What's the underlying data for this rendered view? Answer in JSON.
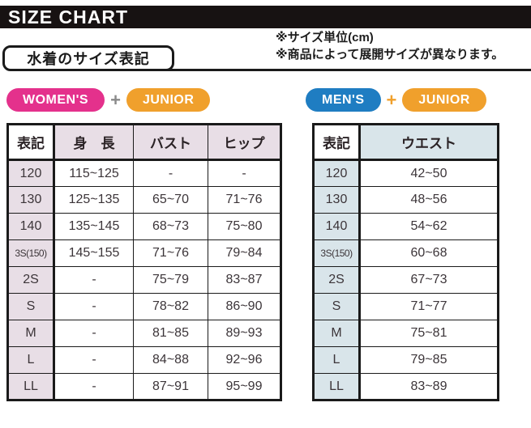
{
  "title_bar": {
    "title": "SIZE CHART"
  },
  "notes": {
    "line1": "※サイズ単位(cm)",
    "line2": "※商品によって展開サイズが異なります。"
  },
  "section_label": "水着のサイズ表記",
  "group_labels": {
    "womens": "WOMEN'S",
    "mens": "MEN'S",
    "junior": "JUNIOR",
    "plus": "+"
  },
  "colors": {
    "bar": "#171212",
    "womens": "#e4318c",
    "junior": "#f0a02c",
    "mens": "#1f7dc2",
    "plus_left": "#8a8a8a",
    "plus_right": "#f0a02c",
    "left_accent": "#e8dee6",
    "right_accent": "#d9e5ea"
  },
  "women_table": {
    "headers": [
      "表記",
      "身　長",
      "バスト",
      "ヒップ"
    ],
    "rows": [
      [
        "120",
        "115~125",
        "-",
        "-"
      ],
      [
        "130",
        "125~135",
        "65~70",
        "71~76"
      ],
      [
        "140",
        "135~145",
        "68~73",
        "75~80"
      ],
      [
        "3S(150)",
        "145~155",
        "71~76",
        "79~84"
      ],
      [
        "2S",
        "-",
        "75~79",
        "83~87"
      ],
      [
        "S",
        "-",
        "78~82",
        "86~90"
      ],
      [
        "M",
        "-",
        "81~85",
        "89~93"
      ],
      [
        "L",
        "-",
        "84~88",
        "92~96"
      ],
      [
        "LL",
        "-",
        "87~91",
        "95~99"
      ]
    ]
  },
  "men_table": {
    "headers": [
      "表記",
      "ウエスト"
    ],
    "rows": [
      [
        "120",
        "42~50"
      ],
      [
        "130",
        "48~56"
      ],
      [
        "140",
        "54~62"
      ],
      [
        "3S(150)",
        "60~68"
      ],
      [
        "2S",
        "67~73"
      ],
      [
        "S",
        "71~77"
      ],
      [
        "M",
        "75~81"
      ],
      [
        "L",
        "79~85"
      ],
      [
        "LL",
        "83~89"
      ]
    ]
  }
}
